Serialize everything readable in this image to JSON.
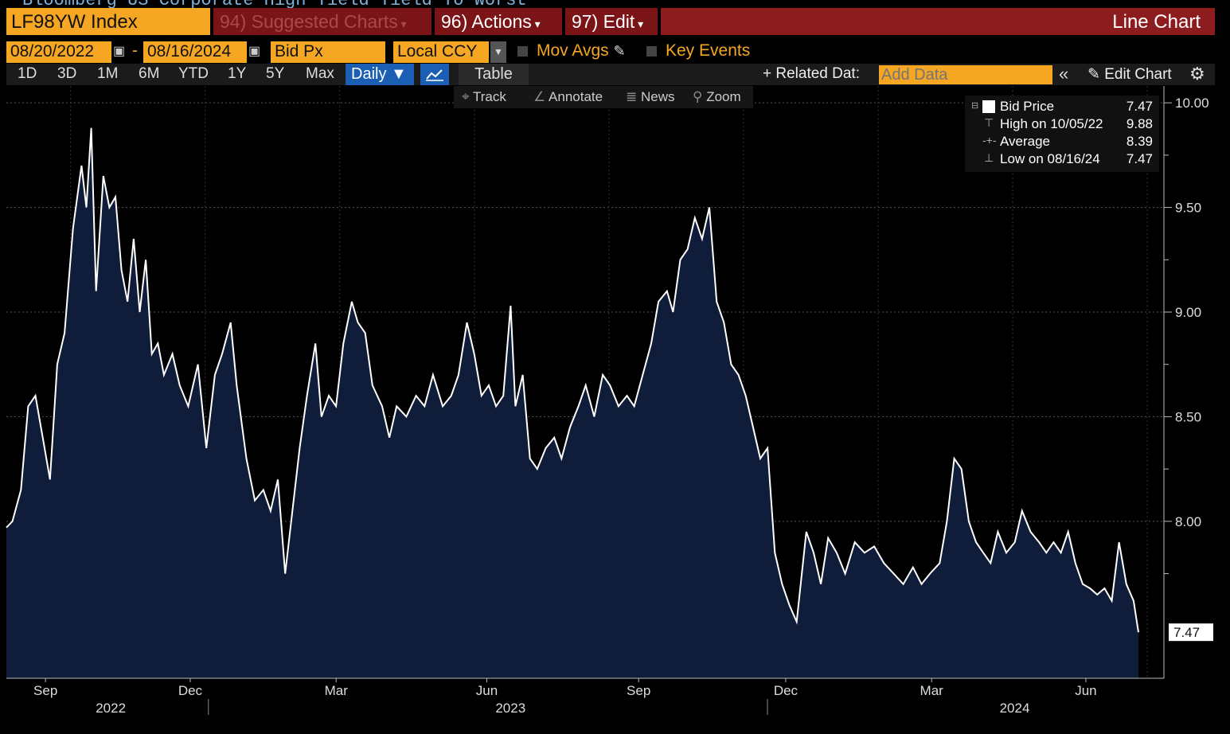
{
  "header": {
    "top_title": "Bloomberg US Corporate High Yield Yield To Worst",
    "ticker": "LF98YW Index",
    "suggested_charts": "94) Suggested Charts",
    "actions": "96) Actions",
    "edit": "97) Edit",
    "chart_type": "Line Chart"
  },
  "controls": {
    "start_date": "08/20/2022",
    "dash": "-",
    "end_date": "08/16/2024",
    "field": "Bid Px",
    "currency": "Local CCY",
    "mov_avgs": "Mov Avgs",
    "key_events": "Key Events",
    "periods": [
      "1D",
      "3D",
      "1M",
      "6M",
      "YTD",
      "1Y",
      "5Y",
      "Max"
    ],
    "frequency": "Daily ▼",
    "table": "Table",
    "related_data": "+ Related Dat:",
    "add_data_placeholder": "Add Data",
    "edit_chart": "Edit Chart"
  },
  "tools": {
    "track": "Track",
    "annotate": "Annotate",
    "news": "News",
    "zoom": "Zoom"
  },
  "legend": {
    "series": "Bid Price",
    "series_value": "7.47",
    "high_label": "High on 10/05/22",
    "high_value": "9.88",
    "avg_label": "Average",
    "avg_value": "8.39",
    "low_label": "Low on 08/16/24",
    "low_value": "7.47"
  },
  "colors": {
    "orange": "#f5a623",
    "fill": "#0f1d3a",
    "line": "#ffffff"
  },
  "chart_data": {
    "type": "area",
    "title": "LF98YW Index",
    "ylim": [
      7.25,
      10.05
    ],
    "yticks": [
      8.0,
      8.5,
      9.0,
      9.5,
      10.0
    ],
    "ytick_labels": [
      "8.00",
      "8.50",
      "9.00",
      "9.50",
      "10.00"
    ],
    "last_value_label": "7.47",
    "x_month_labels": [
      {
        "label": "Sep",
        "t": 0.033
      },
      {
        "label": "Dec",
        "t": 0.155
      },
      {
        "label": "Mar",
        "t": 0.278
      },
      {
        "label": "Jun",
        "t": 0.405
      },
      {
        "label": "Sep",
        "t": 0.533
      },
      {
        "label": "Dec",
        "t": 0.657
      },
      {
        "label": "Mar",
        "t": 0.78
      },
      {
        "label": "Jun",
        "t": 0.91
      }
    ],
    "x_year_labels": [
      {
        "label": "2022",
        "t": 0.088
      },
      {
        "label": "2023",
        "t": 0.425
      },
      {
        "label": "2024",
        "t": 0.85
      }
    ],
    "x_year_dividers": [
      0.18,
      0.678
    ],
    "series": [
      {
        "name": "Bid Price",
        "points": [
          [
            0.0,
            7.97
          ],
          [
            0.005,
            8.0
          ],
          [
            0.012,
            8.15
          ],
          [
            0.018,
            8.55
          ],
          [
            0.024,
            8.6
          ],
          [
            0.03,
            8.4
          ],
          [
            0.036,
            8.2
          ],
          [
            0.042,
            8.75
          ],
          [
            0.048,
            8.9
          ],
          [
            0.055,
            9.4
          ],
          [
            0.062,
            9.7
          ],
          [
            0.066,
            9.5
          ],
          [
            0.07,
            9.88
          ],
          [
            0.074,
            9.1
          ],
          [
            0.08,
            9.65
          ],
          [
            0.085,
            9.5
          ],
          [
            0.09,
            9.55
          ],
          [
            0.095,
            9.2
          ],
          [
            0.1,
            9.05
          ],
          [
            0.105,
            9.35
          ],
          [
            0.11,
            9.0
          ],
          [
            0.115,
            9.25
          ],
          [
            0.12,
            8.8
          ],
          [
            0.125,
            8.85
          ],
          [
            0.13,
            8.7
          ],
          [
            0.137,
            8.8
          ],
          [
            0.143,
            8.65
          ],
          [
            0.15,
            8.55
          ],
          [
            0.158,
            8.75
          ],
          [
            0.165,
            8.35
          ],
          [
            0.172,
            8.7
          ],
          [
            0.178,
            8.8
          ],
          [
            0.185,
            8.95
          ],
          [
            0.19,
            8.65
          ],
          [
            0.198,
            8.3
          ],
          [
            0.205,
            8.1
          ],
          [
            0.212,
            8.15
          ],
          [
            0.218,
            8.05
          ],
          [
            0.224,
            8.2
          ],
          [
            0.23,
            7.75
          ],
          [
            0.236,
            8.05
          ],
          [
            0.242,
            8.35
          ],
          [
            0.248,
            8.6
          ],
          [
            0.255,
            8.85
          ],
          [
            0.26,
            8.5
          ],
          [
            0.266,
            8.6
          ],
          [
            0.272,
            8.55
          ],
          [
            0.278,
            8.85
          ],
          [
            0.285,
            9.05
          ],
          [
            0.29,
            8.95
          ],
          [
            0.296,
            8.9
          ],
          [
            0.302,
            8.65
          ],
          [
            0.31,
            8.55
          ],
          [
            0.316,
            8.4
          ],
          [
            0.322,
            8.55
          ],
          [
            0.33,
            8.5
          ],
          [
            0.338,
            8.6
          ],
          [
            0.345,
            8.55
          ],
          [
            0.352,
            8.7
          ],
          [
            0.36,
            8.55
          ],
          [
            0.367,
            8.6
          ],
          [
            0.373,
            8.7
          ],
          [
            0.38,
            8.95
          ],
          [
            0.386,
            8.8
          ],
          [
            0.392,
            8.6
          ],
          [
            0.398,
            8.65
          ],
          [
            0.404,
            8.55
          ],
          [
            0.41,
            8.6
          ],
          [
            0.416,
            9.03
          ],
          [
            0.42,
            8.55
          ],
          [
            0.426,
            8.7
          ],
          [
            0.432,
            8.3
          ],
          [
            0.438,
            8.25
          ],
          [
            0.445,
            8.35
          ],
          [
            0.452,
            8.4
          ],
          [
            0.458,
            8.3
          ],
          [
            0.465,
            8.45
          ],
          [
            0.472,
            8.55
          ],
          [
            0.478,
            8.65
          ],
          [
            0.485,
            8.5
          ],
          [
            0.492,
            8.7
          ],
          [
            0.498,
            8.65
          ],
          [
            0.505,
            8.55
          ],
          [
            0.512,
            8.6
          ],
          [
            0.518,
            8.55
          ],
          [
            0.525,
            8.7
          ],
          [
            0.532,
            8.85
          ],
          [
            0.538,
            9.05
          ],
          [
            0.545,
            9.1
          ],
          [
            0.55,
            9.0
          ],
          [
            0.556,
            9.25
          ],
          [
            0.562,
            9.3
          ],
          [
            0.568,
            9.45
          ],
          [
            0.574,
            9.35
          ],
          [
            0.58,
            9.5
          ],
          [
            0.586,
            9.05
          ],
          [
            0.592,
            8.95
          ],
          [
            0.598,
            8.75
          ],
          [
            0.604,
            8.7
          ],
          [
            0.61,
            8.6
          ],
          [
            0.616,
            8.45
          ],
          [
            0.622,
            8.3
          ],
          [
            0.628,
            8.35
          ],
          [
            0.634,
            7.85
          ],
          [
            0.64,
            7.7
          ],
          [
            0.646,
            7.6
          ],
          [
            0.652,
            7.52
          ],
          [
            0.66,
            7.95
          ],
          [
            0.666,
            7.85
          ],
          [
            0.672,
            7.7
          ],
          [
            0.678,
            7.92
          ],
          [
            0.685,
            7.85
          ],
          [
            0.692,
            7.75
          ],
          [
            0.7,
            7.9
          ],
          [
            0.708,
            7.85
          ],
          [
            0.716,
            7.88
          ],
          [
            0.724,
            7.8
          ],
          [
            0.732,
            7.75
          ],
          [
            0.74,
            7.7
          ],
          [
            0.748,
            7.78
          ],
          [
            0.755,
            7.7
          ],
          [
            0.762,
            7.75
          ],
          [
            0.77,
            7.8
          ],
          [
            0.776,
            8.0
          ],
          [
            0.782,
            8.3
          ],
          [
            0.788,
            8.25
          ],
          [
            0.794,
            8.0
          ],
          [
            0.8,
            7.9
          ],
          [
            0.806,
            7.85
          ],
          [
            0.812,
            7.8
          ],
          [
            0.818,
            7.95
          ],
          [
            0.825,
            7.85
          ],
          [
            0.832,
            7.9
          ],
          [
            0.838,
            8.05
          ],
          [
            0.845,
            7.95
          ],
          [
            0.852,
            7.9
          ],
          [
            0.858,
            7.85
          ],
          [
            0.864,
            7.9
          ],
          [
            0.87,
            7.85
          ],
          [
            0.876,
            7.95
          ],
          [
            0.882,
            7.8
          ],
          [
            0.888,
            7.7
          ],
          [
            0.894,
            7.68
          ],
          [
            0.9,
            7.65
          ],
          [
            0.906,
            7.68
          ],
          [
            0.912,
            7.62
          ],
          [
            0.918,
            7.9
          ],
          [
            0.924,
            7.7
          ],
          [
            0.93,
            7.62
          ],
          [
            0.934,
            7.47
          ]
        ]
      }
    ]
  }
}
